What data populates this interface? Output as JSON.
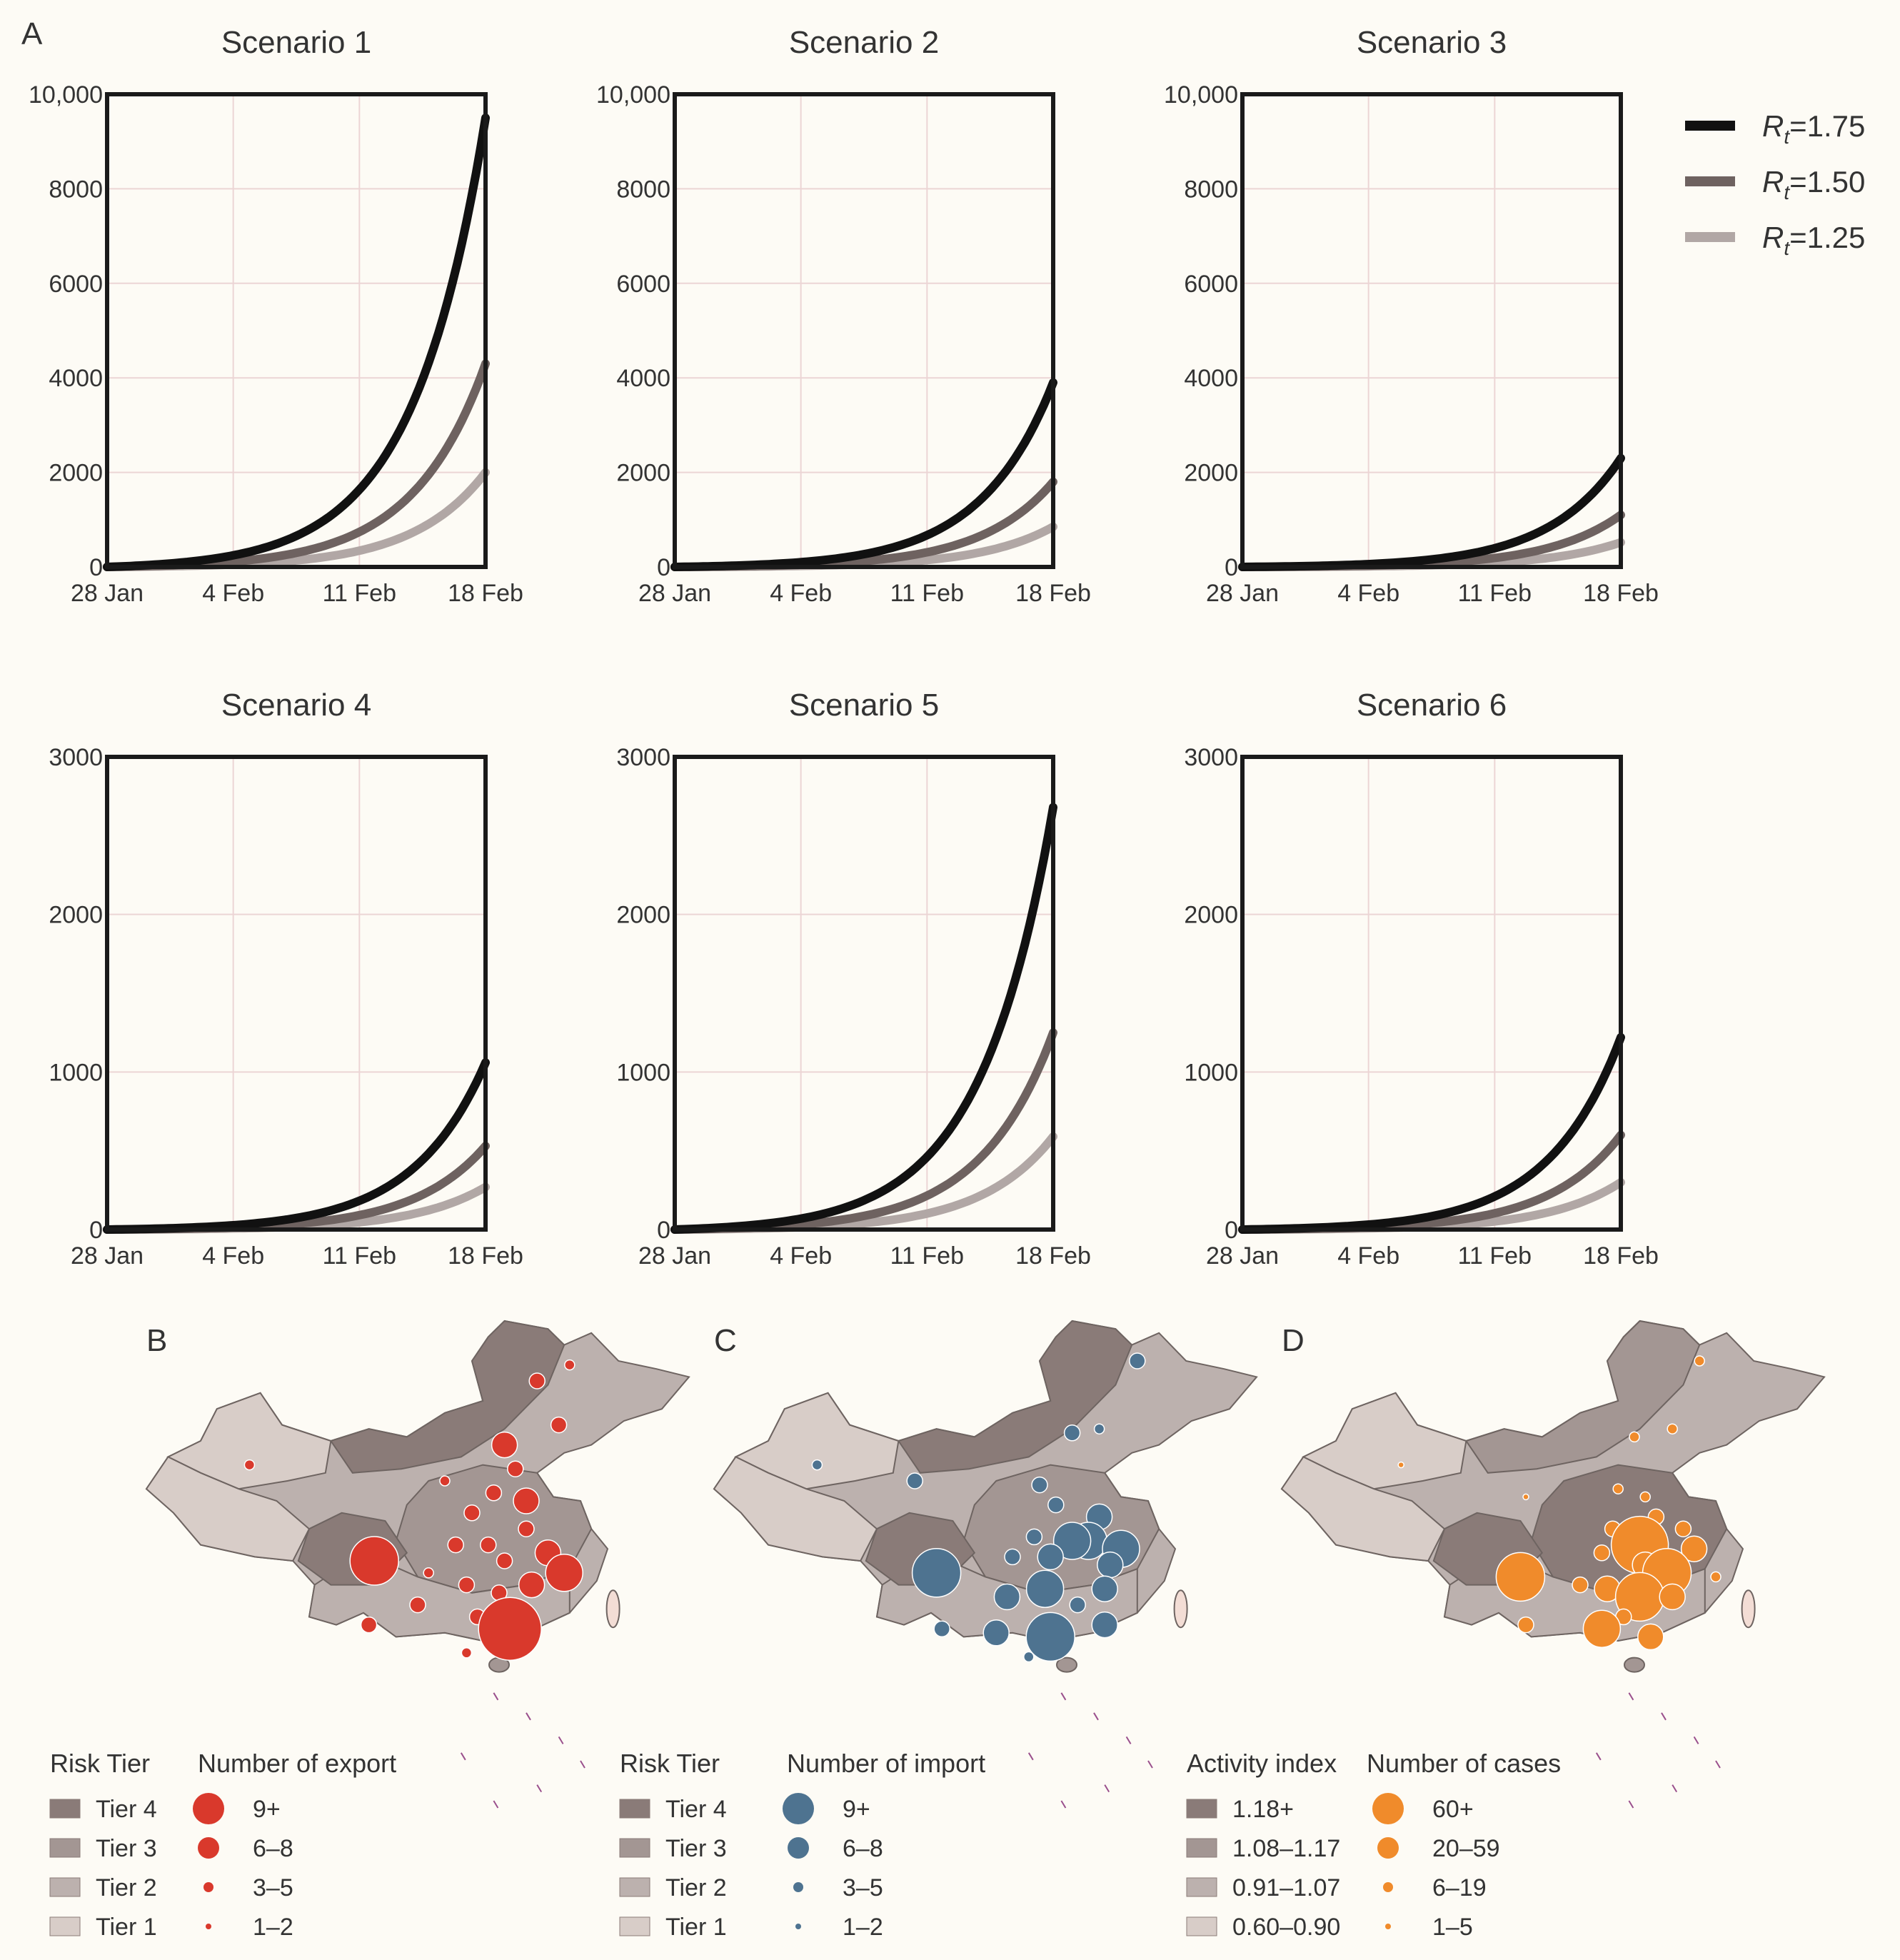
{
  "panel_a": {
    "letter": "A",
    "legend": [
      {
        "label": "=1.75",
        "italic": "R",
        "sub": "t",
        "color": "#111111"
      },
      {
        "label": "=1.50",
        "italic": "R",
        "sub": "t",
        "color": "#6e6260"
      },
      {
        "label": "=1.25",
        "italic": "R",
        "sub": "t",
        "color": "#b1a7a5"
      }
    ]
  },
  "chart_data": [
    {
      "type": "line",
      "title": "Scenario 1",
      "categories": [
        "28 Jan",
        "4 Feb",
        "11 Feb",
        "18 Feb"
      ],
      "ylim": [
        0,
        10000
      ],
      "yticks": [
        "0",
        "2000",
        "4000",
        "6000",
        "8000",
        "10,000"
      ],
      "series": [
        {
          "name": "Rt=1.75",
          "end": 9500
        },
        {
          "name": "Rt=1.50",
          "end": 4300
        },
        {
          "name": "Rt=1.25",
          "end": 2000
        }
      ]
    },
    {
      "type": "line",
      "title": "Scenario 2",
      "categories": [
        "28 Jan",
        "4 Feb",
        "11 Feb",
        "18 Feb"
      ],
      "ylim": [
        0,
        10000
      ],
      "yticks": [
        "0",
        "2000",
        "4000",
        "6000",
        "8000",
        "10,000"
      ],
      "series": [
        {
          "name": "Rt=1.75",
          "end": 3900
        },
        {
          "name": "Rt=1.50",
          "end": 1800
        },
        {
          "name": "Rt=1.25",
          "end": 850
        }
      ]
    },
    {
      "type": "line",
      "title": "Scenario 3",
      "categories": [
        "28 Jan",
        "4 Feb",
        "11 Feb",
        "18 Feb"
      ],
      "ylim": [
        0,
        10000
      ],
      "yticks": [
        "0",
        "2000",
        "4000",
        "6000",
        "8000",
        "10,000"
      ],
      "series": [
        {
          "name": "Rt=1.75",
          "end": 2300
        },
        {
          "name": "Rt=1.50",
          "end": 1100
        },
        {
          "name": "Rt=1.25",
          "end": 520
        }
      ]
    },
    {
      "type": "line",
      "title": "Scenario 4",
      "categories": [
        "28 Jan",
        "4 Feb",
        "11 Feb",
        "18 Feb"
      ],
      "ylim": [
        0,
        3000
      ],
      "yticks": [
        "0",
        "1000",
        "2000",
        "3000"
      ],
      "series": [
        {
          "name": "Rt=1.75",
          "end": 1060
        },
        {
          "name": "Rt=1.50",
          "end": 530
        },
        {
          "name": "Rt=1.25",
          "end": 270
        }
      ]
    },
    {
      "type": "line",
      "title": "Scenario 5",
      "categories": [
        "28 Jan",
        "4 Feb",
        "11 Feb",
        "18 Feb"
      ],
      "ylim": [
        0,
        3000
      ],
      "yticks": [
        "0",
        "1000",
        "2000",
        "3000"
      ],
      "series": [
        {
          "name": "Rt=1.75",
          "end": 2680
        },
        {
          "name": "Rt=1.50",
          "end": 1250
        },
        {
          "name": "Rt=1.25",
          "end": 590
        }
      ]
    },
    {
      "type": "line",
      "title": "Scenario 6",
      "categories": [
        "28 Jan",
        "4 Feb",
        "11 Feb",
        "18 Feb"
      ],
      "ylim": [
        0,
        3000
      ],
      "yticks": [
        "0",
        "1000",
        "2000",
        "3000"
      ],
      "series": [
        {
          "name": "Rt=1.75",
          "end": 1220
        },
        {
          "name": "Rt=1.50",
          "end": 600
        },
        {
          "name": "Rt=1.25",
          "end": 300
        }
      ]
    }
  ],
  "maps": [
    {
      "letter": "B",
      "color": "#d9392c",
      "fill_title": "Risk Tier",
      "size_title": "Number of export",
      "fill_items": [
        "Tier 4",
        "Tier 3",
        "Tier 2",
        "Tier 1"
      ],
      "size_items": [
        "9+",
        "6–8",
        "3–5",
        "1–2"
      ],
      "fill_colors": [
        "#8a7b78",
        "#a39693",
        "#bcb1ae",
        "#d8cdc8"
      ]
    },
    {
      "letter": "C",
      "color": "#4e7390",
      "fill_title": "Risk Tier",
      "size_title": "Number of import",
      "fill_items": [
        "Tier 4",
        "Tier 3",
        "Tier 2",
        "Tier 1"
      ],
      "size_items": [
        "9+",
        "6–8",
        "3–5",
        "1–2"
      ],
      "fill_colors": [
        "#8a7b78",
        "#a39693",
        "#bcb1ae",
        "#d8cdc8"
      ]
    },
    {
      "letter": "D",
      "color": "#f08b2b",
      "fill_title": "Activity index",
      "size_title": "Number of cases",
      "fill_items": [
        "1.18+",
        "1.08–1.17",
        "0.91–1.07",
        "0.60–0.90"
      ],
      "size_items": [
        "60+",
        "20–59",
        "6–19",
        "1–5"
      ],
      "fill_colors": [
        "#8a7b78",
        "#a39693",
        "#bcb1ae",
        "#d8cdc8"
      ]
    }
  ]
}
